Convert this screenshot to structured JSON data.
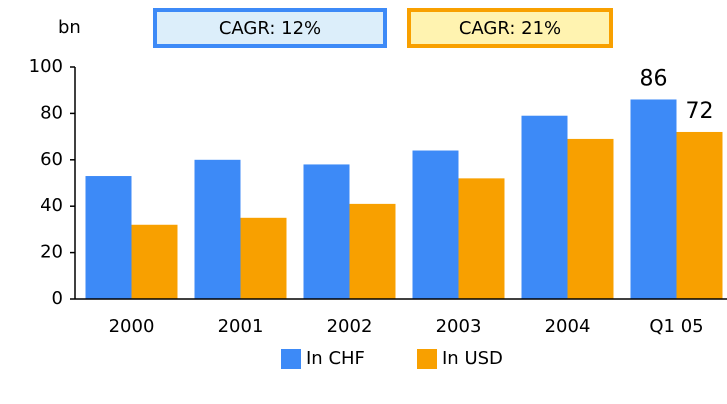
{
  "chart_data": {
    "type": "bar",
    "y_label": "bn",
    "annotations": [
      {
        "text": "CAGR: 12%",
        "color": "#3d8af7",
        "fill": "#dceefa"
      },
      {
        "text": "CAGR: 21%",
        "color": "#f8a000",
        "fill": "#fff3b0"
      }
    ],
    "categories": [
      "2000",
      "2001",
      "2002",
      "2003",
      "2004",
      "Q1 05"
    ],
    "series": [
      {
        "name": "In CHF",
        "color": "#3d8af7",
        "values": [
          53,
          60,
          58,
          64,
          79,
          86
        ]
      },
      {
        "name": "In USD",
        "color": "#f8a000",
        "values": [
          32,
          35,
          41,
          52,
          69,
          72
        ]
      }
    ],
    "ylim": [
      0,
      100
    ],
    "yticks": [
      0,
      20,
      40,
      60,
      80,
      100
    ]
  }
}
